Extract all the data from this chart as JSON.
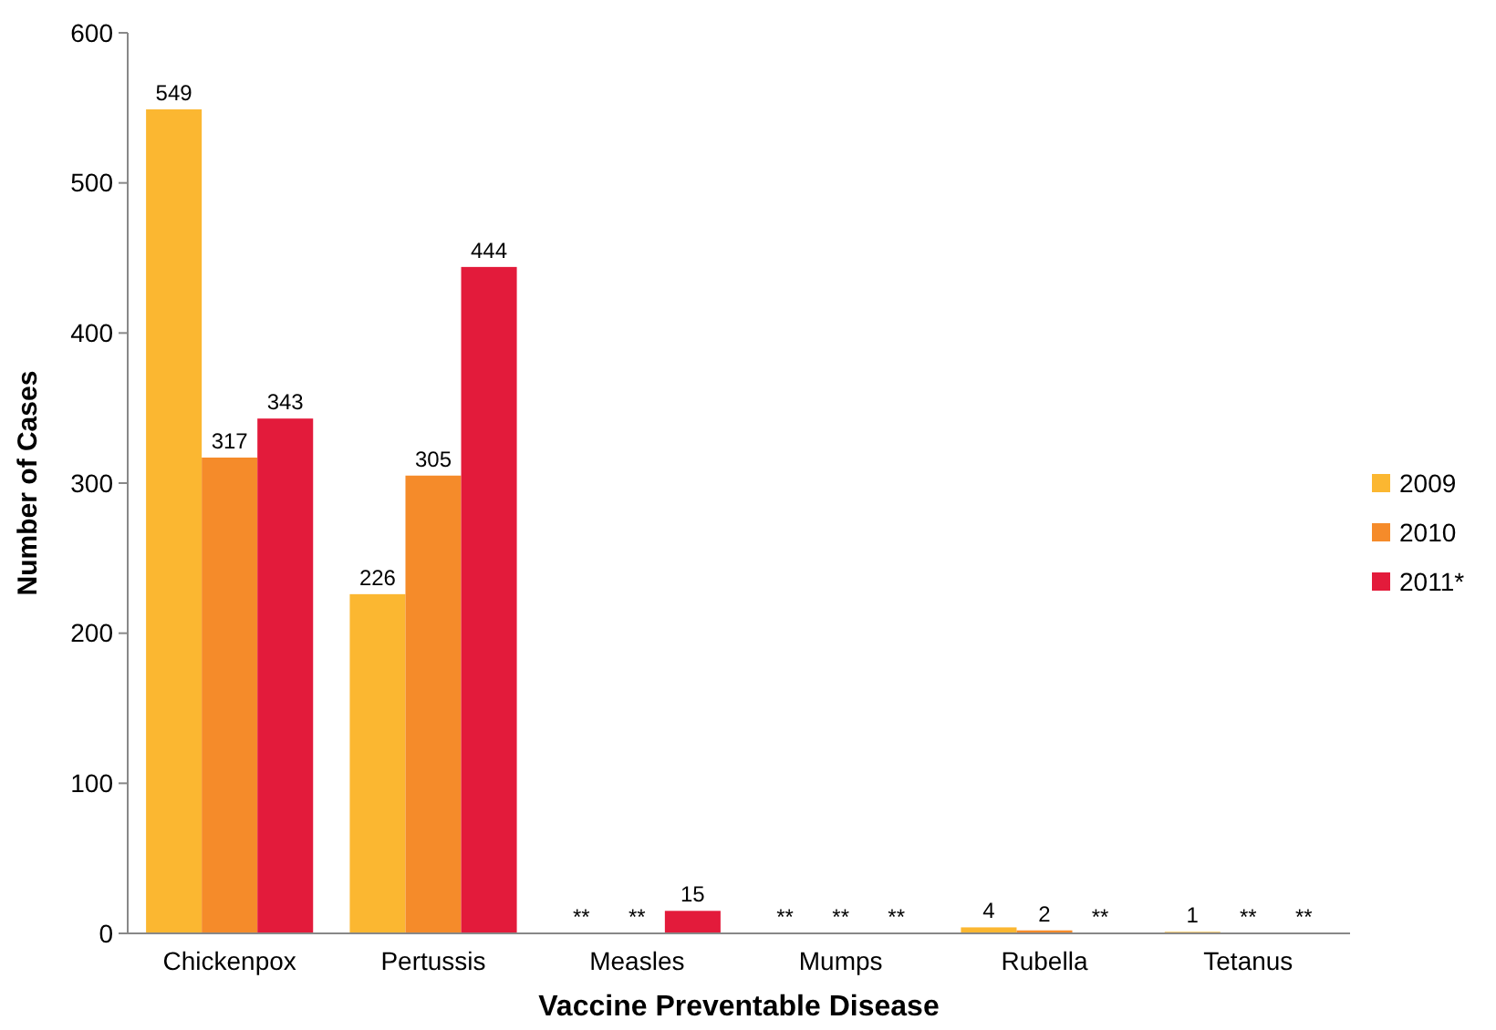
{
  "chart_data": {
    "type": "bar",
    "xlabel": "Vaccine Preventable Disease",
    "ylabel": "Number of Cases",
    "categories": [
      "Chickenpox",
      "Pertussis",
      "Measles",
      "Mumps",
      "Rubella",
      "Tetanus"
    ],
    "series": [
      {
        "name": "2009",
        "color": "#fbb731",
        "values": [
          549,
          226,
          null,
          null,
          4,
          1
        ],
        "value_labels": [
          "549",
          "226",
          "**",
          "**",
          "4",
          "1"
        ]
      },
      {
        "name": "2010",
        "color": "#f58b2a",
        "values": [
          317,
          305,
          null,
          null,
          2,
          null
        ],
        "value_labels": [
          "317",
          "305",
          "**",
          "**",
          "2",
          "**"
        ]
      },
      {
        "name": "2011*",
        "color": "#e31b3b",
        "values": [
          343,
          444,
          15,
          null,
          null,
          null
        ],
        "value_labels": [
          "343",
          "444",
          "15",
          "**",
          "**",
          "**"
        ]
      }
    ],
    "ylim": [
      0,
      600
    ],
    "yticks": [
      0,
      100,
      200,
      300,
      400,
      500,
      600
    ],
    "grid": false,
    "legend": "right"
  }
}
